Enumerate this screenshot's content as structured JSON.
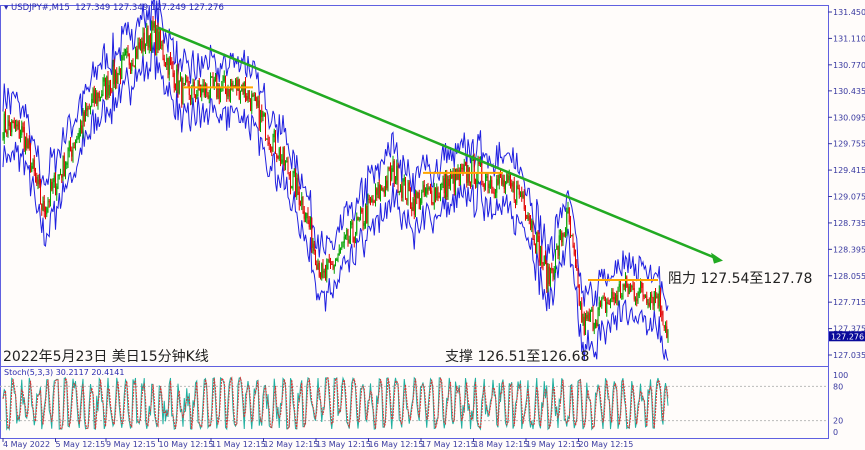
{
  "header": {
    "symbol": "USDJPY#,M15",
    "ohlc": "127.349 127.349 127.249 127.276"
  },
  "annotations": {
    "date_title": "2022年5月23日 美日15分钟K线",
    "resistance": "阻力 127.54至127.78",
    "support": "支撑 126.51至126.68"
  },
  "stoch": {
    "label": "Stoch(5,3,3) 30.2117 20.4141",
    "ticks": [
      "100",
      "80",
      "20",
      "0"
    ]
  },
  "colors": {
    "trendline": "#22aa22",
    "levels": "#ffa500",
    "bands": "#2020e0",
    "bull": "#00a000",
    "bear": "#e00000",
    "stoch_main": "#20b0a0",
    "stoch_signal": "#e03030"
  },
  "chart_data": {
    "type": "candlestick",
    "ylim": [
      126.95,
      131.55
    ],
    "y_ticks": [
      "131.450",
      "131.110",
      "130.770",
      "130.435",
      "130.095",
      "129.755",
      "129.415",
      "129.075",
      "128.735",
      "128.395",
      "128.055",
      "127.715",
      "127.375",
      "127.035"
    ],
    "current_price": "127.276",
    "x_ticks": [
      "4 May 2022",
      "5 May 12:15",
      "9 May 12:15",
      "10 May 12:15",
      "11 May 12:15",
      "12 May 12:15",
      "13 May 12:15",
      "16 May 12:15",
      "17 May 12:15",
      "18 May 12:15",
      "19 May 12:15",
      "20 May 12:15"
    ],
    "close_path": [
      [
        0,
        130.0
      ],
      [
        4,
        129.9
      ],
      [
        8,
        128.9
      ],
      [
        18,
        130.3
      ],
      [
        30,
        131.2
      ],
      [
        36,
        130.4
      ],
      [
        48,
        130.5
      ],
      [
        54,
        129.8
      ],
      [
        60,
        129.0
      ],
      [
        64,
        128.0
      ],
      [
        69,
        128.5
      ],
      [
        78,
        129.4
      ],
      [
        82,
        129.0
      ],
      [
        94,
        129.4
      ],
      [
        104,
        129.1
      ],
      [
        109,
        128.0
      ],
      [
        113,
        128.8
      ],
      [
        116,
        127.4
      ],
      [
        124,
        127.9
      ],
      [
        131,
        127.8
      ],
      [
        133,
        127.3
      ]
    ],
    "trendline": [
      [
        31,
        131.25
      ],
      [
        144,
        128.25
      ]
    ],
    "levels": [
      {
        "from": 36,
        "to": 50,
        "price": 130.48
      },
      {
        "from": 84,
        "to": 100,
        "price": 129.38
      },
      {
        "from": 117,
        "to": 131,
        "price": 128.0
      }
    ]
  }
}
